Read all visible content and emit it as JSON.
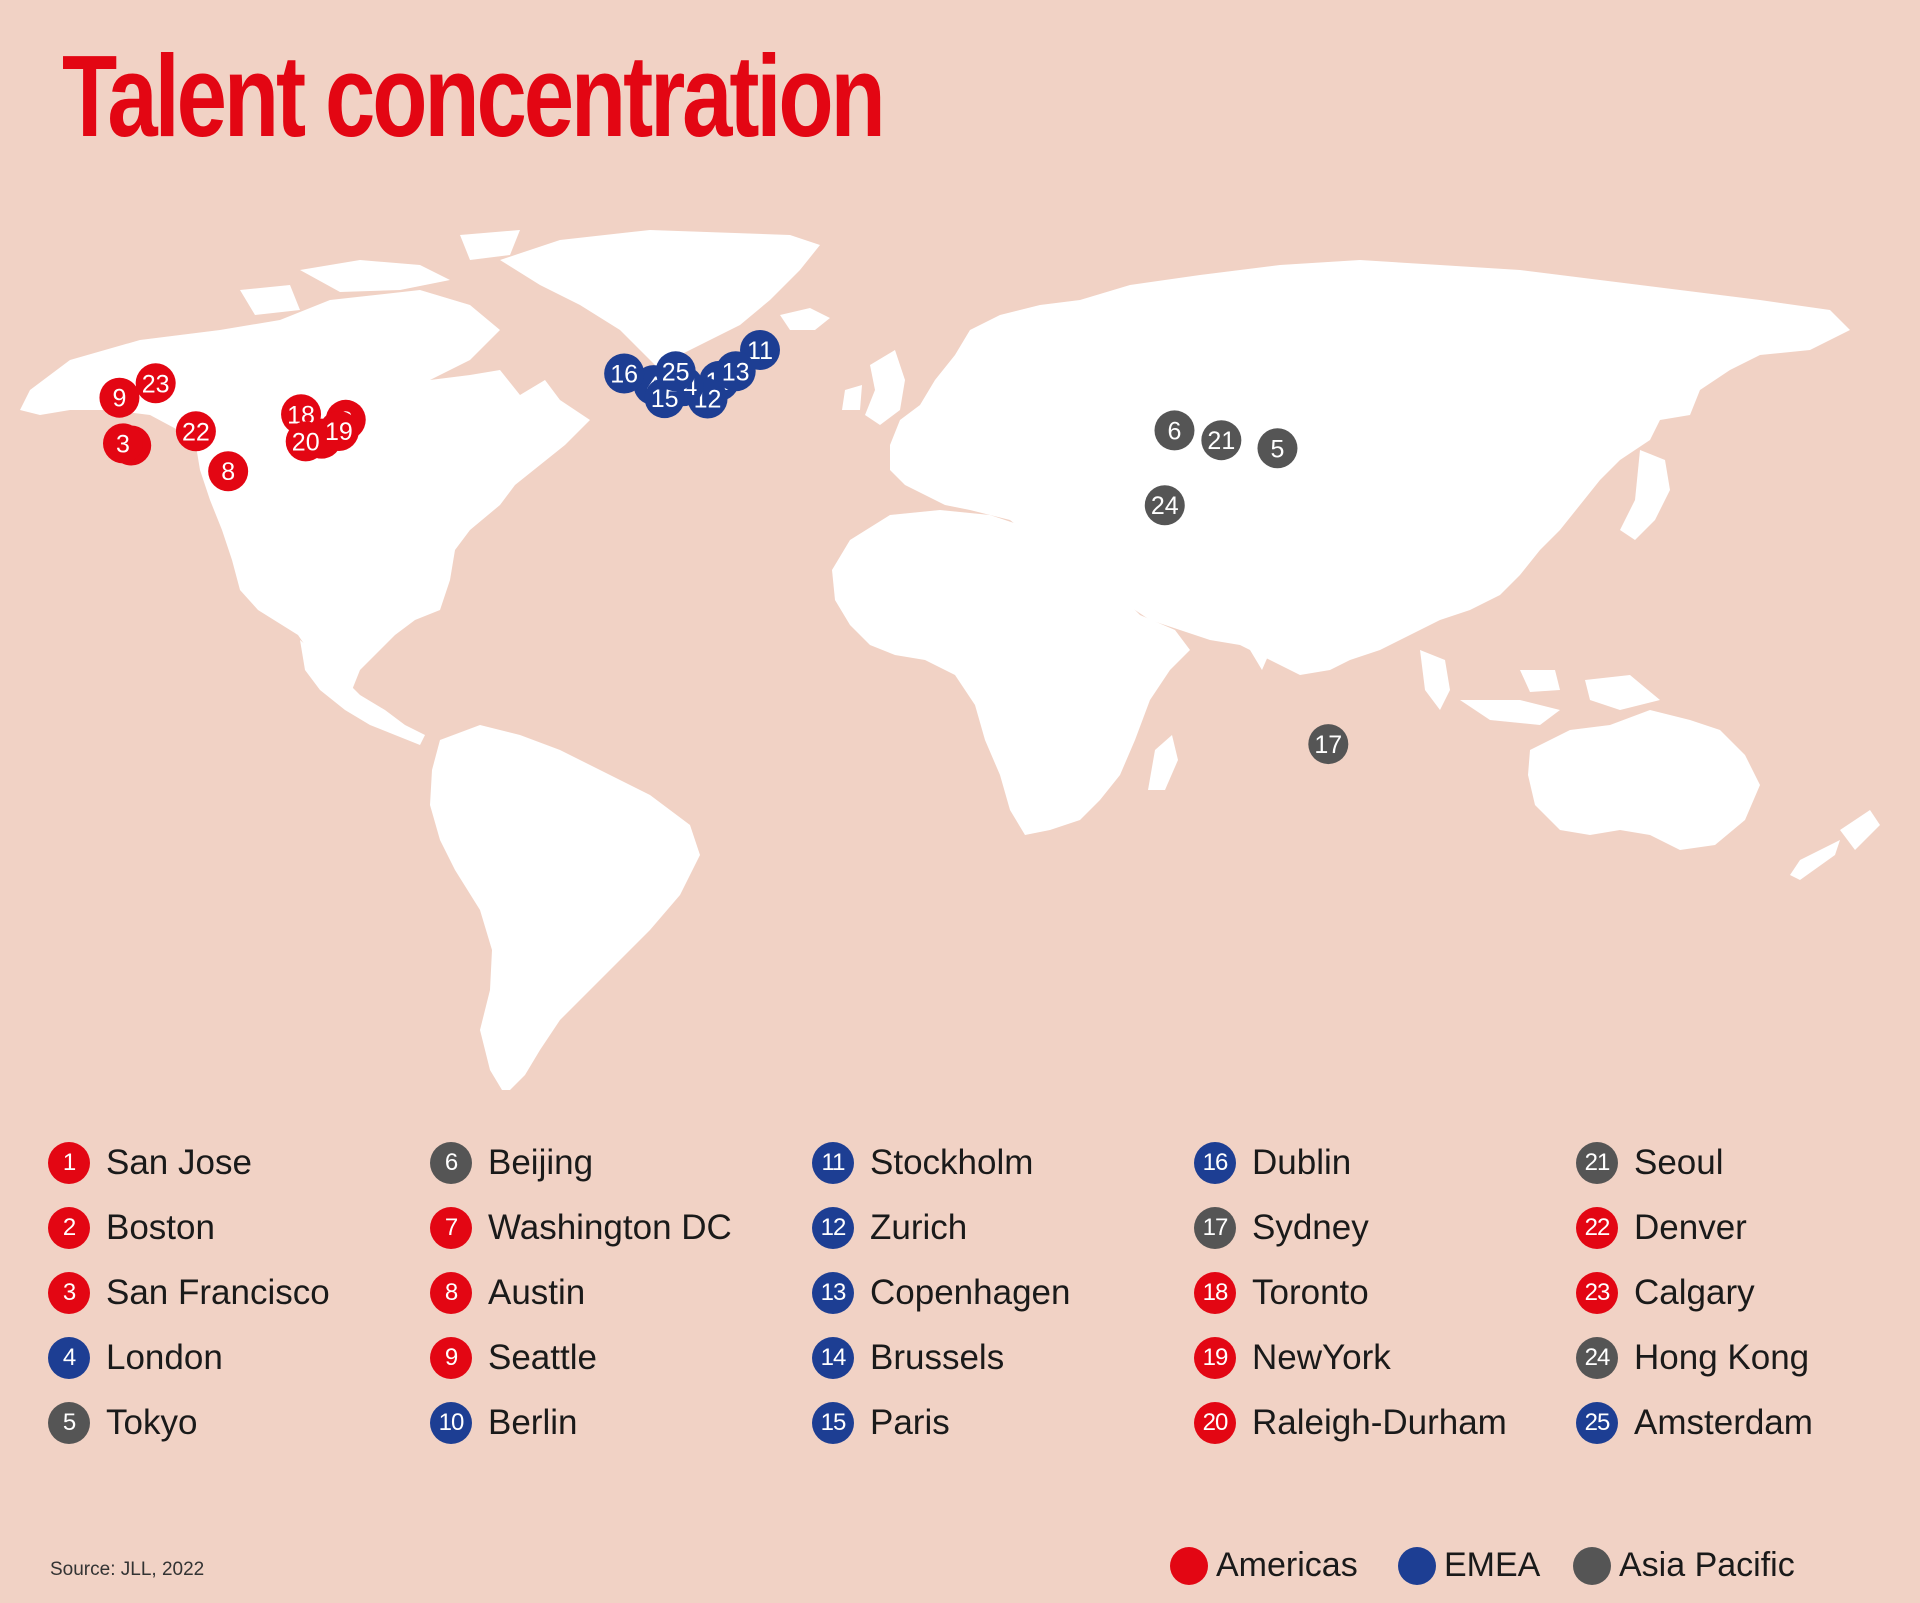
{
  "title": "Talent concentration",
  "source": "Source: JLL, 2022",
  "region_colors": {
    "americas": "#e30613",
    "emea": "#1d3e93",
    "apac": "#555555"
  },
  "regions": [
    {
      "key": "americas",
      "label": "Americas"
    },
    {
      "key": "emea",
      "label": "EMEA"
    },
    {
      "key": "apac",
      "label": "Asia Pacific"
    }
  ],
  "cities": [
    {
      "rank": "1",
      "name": "San Jose",
      "region": "americas",
      "lon": -121.9,
      "lat": 37.3
    },
    {
      "rank": "2",
      "name": "Boston",
      "region": "americas",
      "lon": -71.1,
      "lat": 42.4
    },
    {
      "rank": "3",
      "name": "San Francisco",
      "region": "americas",
      "lon": -122.4,
      "lat": 37.8
    },
    {
      "rank": "4",
      "name": "London",
      "region": "emea",
      "lon": -0.1,
      "lat": 51.5
    },
    {
      "rank": "5",
      "name": "Tokyo",
      "region": "apac",
      "lon": 139.7,
      "lat": 35.7
    },
    {
      "rank": "6",
      "name": "Beijing",
      "region": "apac",
      "lon": 116.4,
      "lat": 39.9
    },
    {
      "rank": "7",
      "name": "Washington DC",
      "region": "americas",
      "lon": -77.0,
      "lat": 38.9
    },
    {
      "rank": "8",
      "name": "Austin",
      "region": "americas",
      "lon": -97.7,
      "lat": 30.3
    },
    {
      "rank": "9",
      "name": "Seattle",
      "region": "americas",
      "lon": -122.3,
      "lat": 47.6
    },
    {
      "rank": "10",
      "name": "Berlin",
      "region": "emea",
      "lon": 13.4,
      "lat": 52.5
    },
    {
      "rank": "11",
      "name": "Stockholm",
      "region": "emea",
      "lon": 18.1,
      "lat": 59.3
    },
    {
      "rank": "12",
      "name": "Zurich",
      "region": "emea",
      "lon": 8.5,
      "lat": 47.4
    },
    {
      "rank": "13",
      "name": "Copenhagen",
      "region": "emea",
      "lon": 12.6,
      "lat": 55.7
    },
    {
      "rank": "14",
      "name": "Brussels",
      "region": "emea",
      "lon": 4.4,
      "lat": 50.8
    },
    {
      "rank": "15",
      "name": "Paris",
      "region": "emea",
      "lon": 2.4,
      "lat": 48.9
    },
    {
      "rank": "16",
      "name": "Dublin",
      "region": "emea",
      "lon": -6.3,
      "lat": 53.3
    },
    {
      "rank": "17",
      "name": "Sydney",
      "region": "apac",
      "lon": 151.2,
      "lat": -33.9
    },
    {
      "rank": "18",
      "name": "Toronto",
      "region": "americas",
      "lon": -79.4,
      "lat": 43.7
    },
    {
      "rank": "19",
      "name": "NewYork",
      "region": "americas",
      "lon": -74.0,
      "lat": 40.7
    },
    {
      "rank": "20",
      "name": "Raleigh-Durham",
      "region": "americas",
      "lon": -78.8,
      "lat": 35.9
    },
    {
      "rank": "21",
      "name": "Seoul",
      "region": "apac",
      "lon": 127.0,
      "lat": 37.6
    },
    {
      "rank": "22",
      "name": "Denver",
      "region": "americas",
      "lon": -105.0,
      "lat": 39.7
    },
    {
      "rank": "23",
      "name": "Calgary",
      "region": "americas",
      "lon": -114.1,
      "lat": 51.0
    },
    {
      "rank": "24",
      "name": "Hong Kong",
      "region": "apac",
      "lon": 114.2,
      "lat": 22.3
    },
    {
      "rank": "25",
      "name": "Amsterdam",
      "region": "emea",
      "lon": 4.9,
      "lat": 52.4
    }
  ]
}
